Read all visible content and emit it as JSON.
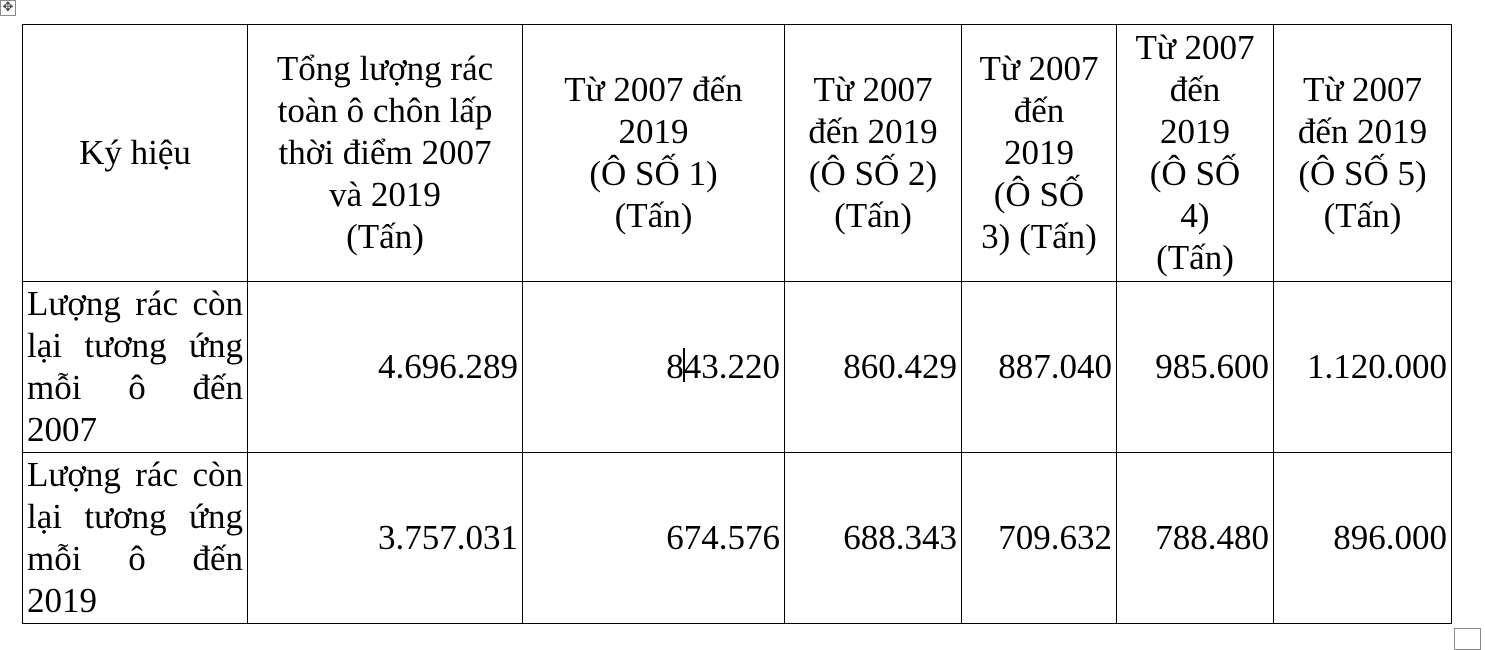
{
  "ui": {
    "move_handle_icon": "move-arrows-icon",
    "resize_handle_icon": "resize-square-icon"
  },
  "table": {
    "headers": [
      "Ký hiệu",
      "Tổng lượng rác\ntoàn ô chôn lấp\nthời điểm 2007\nvà 2019\n(Tấn)",
      "Từ 2007 đến\n2019\n(Ô SỐ 1)\n(Tấn)",
      "Từ 2007\nđến 2019\n(Ô SỐ 2)\n(Tấn)",
      "Từ 2007\nđến\n2019\n(Ô SỐ\n3) (Tấn)",
      "Từ 2007\nđến\n2019\n(Ô SỐ\n4)\n(Tấn)",
      "Từ 2007\nđến 2019\n(Ô SỐ 5)\n(Tấn)"
    ],
    "rows": [
      {
        "label": "Lượng rác còn lại tương ứng mỗi ô đến 2007",
        "values": [
          "4.696.289",
          "843.220",
          "860.429",
          "887.040",
          "985.600",
          "1.120.000"
        ],
        "cursor_split": [
          "8",
          "43.220"
        ]
      },
      {
        "label": "Lượng rác còn lại tương ứng mỗi ô đến 2019",
        "values": [
          "3.757.031",
          "674.576",
          "688.343",
          "709.632",
          "788.480",
          "896.000"
        ]
      }
    ]
  }
}
